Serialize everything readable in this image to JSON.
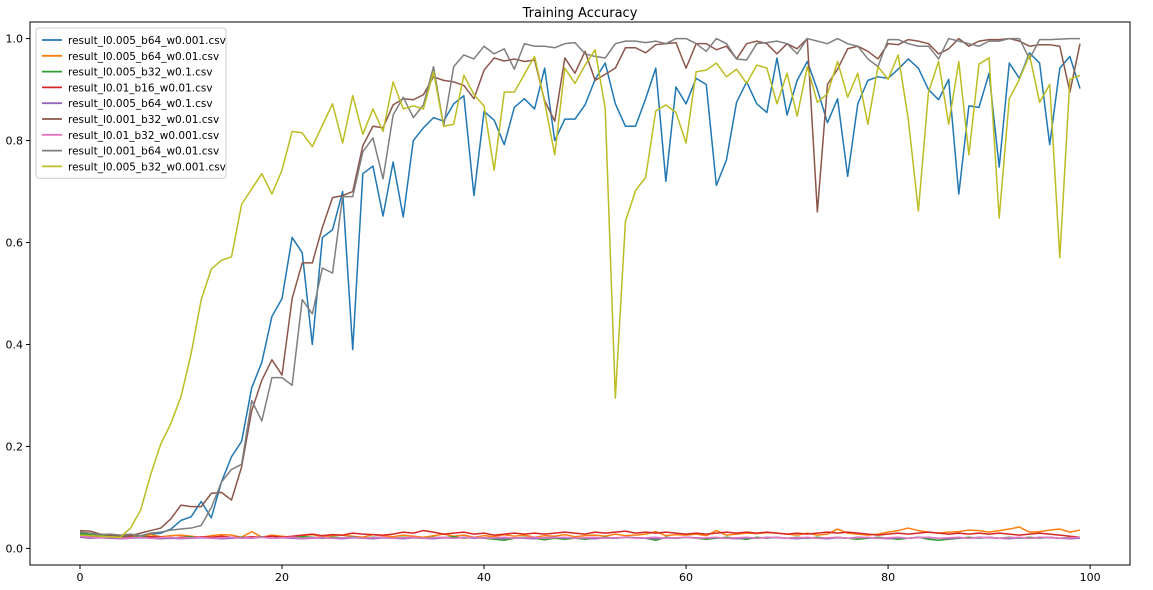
{
  "chart_data": {
    "type": "line",
    "title": "Training Accuracy",
    "xlabel": "",
    "ylabel": "",
    "xlim": [
      -4.95,
      103.95
    ],
    "ylim": [
      -0.0325,
      1.0325
    ],
    "xticks": [
      0,
      20,
      40,
      60,
      80,
      100
    ],
    "yticks": [
      0.0,
      0.2,
      0.4,
      0.6,
      0.8,
      1.0
    ],
    "grid": false,
    "legend_position": "top-left",
    "series": [
      {
        "name": "result_l0.005_b64_w0.001.csv",
        "color": "#1f77b4",
        "x_start": 0,
        "values": [
          0.028,
          0.026,
          0.024,
          0.023,
          0.022,
          0.024,
          0.025,
          0.028,
          0.03,
          0.038,
          0.055,
          0.062,
          0.092,
          0.06,
          0.13,
          0.18,
          0.21,
          0.315,
          0.365,
          0.455,
          0.49,
          0.61,
          0.58,
          0.4,
          0.61,
          0.625,
          0.7,
          0.39,
          0.735,
          0.75,
          0.652,
          0.758,
          0.65,
          0.8,
          0.825,
          0.845,
          0.838,
          0.872,
          0.888,
          0.692,
          0.857,
          0.84,
          0.792,
          0.865,
          0.882,
          0.862,
          0.942,
          0.8,
          0.842,
          0.842,
          0.87,
          0.92,
          0.952,
          0.872,
          0.828,
          0.828,
          0.882,
          0.942,
          0.72,
          0.905,
          0.872,
          0.922,
          0.91,
          0.712,
          0.762,
          0.875,
          0.915,
          0.872,
          0.855,
          0.962,
          0.85,
          0.918,
          0.955,
          0.9,
          0.835,
          0.882,
          0.73,
          0.872,
          0.918,
          0.925,
          0.922,
          0.94,
          0.96,
          0.942,
          0.9,
          0.88,
          0.92,
          0.695,
          0.868,
          0.865,
          0.932,
          0.748,
          0.952,
          0.922,
          0.972,
          0.952,
          0.792,
          0.942,
          0.965,
          0.902
        ]
      },
      {
        "name": "result_l0.005_b64_w0.01.csv",
        "color": "#ff7f0e",
        "x_start": 0,
        "values": [
          0.025,
          0.022,
          0.026,
          0.021,
          0.02,
          0.025,
          0.022,
          0.027,
          0.023,
          0.025,
          0.026,
          0.024,
          0.022,
          0.025,
          0.027,
          0.026,
          0.022,
          0.033,
          0.022,
          0.026,
          0.024,
          0.022,
          0.025,
          0.027,
          0.023,
          0.025,
          0.026,
          0.024,
          0.022,
          0.027,
          0.025,
          0.023,
          0.026,
          0.024,
          0.022,
          0.025,
          0.028,
          0.024,
          0.026,
          0.022,
          0.025,
          0.023,
          0.027,
          0.024,
          0.026,
          0.022,
          0.025,
          0.024,
          0.027,
          0.023,
          0.025,
          0.026,
          0.024,
          0.028,
          0.025,
          0.026,
          0.028,
          0.033,
          0.025,
          0.027,
          0.026,
          0.028,
          0.025,
          0.035,
          0.026,
          0.028,
          0.03,
          0.029,
          0.031,
          0.03,
          0.028,
          0.026,
          0.03,
          0.026,
          0.028,
          0.038,
          0.03,
          0.028,
          0.026,
          0.028,
          0.032,
          0.035,
          0.04,
          0.035,
          0.032,
          0.03,
          0.032,
          0.033,
          0.036,
          0.035,
          0.032,
          0.035,
          0.038,
          0.042,
          0.032,
          0.033,
          0.036,
          0.038,
          0.032,
          0.036
        ]
      },
      {
        "name": "result_l0.005_b32_w0.1.csv",
        "color": "#2ca02c",
        "x_start": 0,
        "values": [
          0.03,
          0.027,
          0.025,
          0.024,
          0.023,
          0.022,
          0.024,
          0.023,
          0.022,
          0.02,
          0.022,
          0.023,
          0.021,
          0.022,
          0.02,
          0.021,
          0.022,
          0.021,
          0.023,
          0.02,
          0.022,
          0.021,
          0.023,
          0.022,
          0.02,
          0.022,
          0.021,
          0.023,
          0.02,
          0.022,
          0.021,
          0.02,
          0.022,
          0.021,
          0.02,
          0.022,
          0.021,
          0.023,
          0.02,
          0.022,
          0.02,
          0.018,
          0.016,
          0.02,
          0.022,
          0.02,
          0.017,
          0.02,
          0.018,
          0.02,
          0.018,
          0.02,
          0.022,
          0.02,
          0.022,
          0.021,
          0.02,
          0.016,
          0.022,
          0.02,
          0.022,
          0.02,
          0.018,
          0.02,
          0.022,
          0.02,
          0.018,
          0.022,
          0.02,
          0.022,
          0.02,
          0.022,
          0.02,
          0.022,
          0.02,
          0.022,
          0.02,
          0.018,
          0.02,
          0.022,
          0.02,
          0.018,
          0.02,
          0.022,
          0.018,
          0.016,
          0.018,
          0.02,
          0.022,
          0.02,
          0.022,
          0.02,
          0.022,
          0.02,
          0.022,
          0.02,
          0.022,
          0.02,
          0.022,
          0.02
        ]
      },
      {
        "name": "result_l0.01_b16_w0.01.csv",
        "color": "#d62728",
        "x_start": 0,
        "values": [
          0.025,
          0.023,
          0.022,
          0.021,
          0.02,
          0.022,
          0.021,
          0.023,
          0.022,
          0.02,
          0.022,
          0.021,
          0.023,
          0.022,
          0.024,
          0.022,
          0.021,
          0.023,
          0.022,
          0.024,
          0.022,
          0.024,
          0.026,
          0.028,
          0.025,
          0.027,
          0.026,
          0.03,
          0.028,
          0.027,
          0.026,
          0.028,
          0.032,
          0.03,
          0.035,
          0.032,
          0.028,
          0.03,
          0.032,
          0.028,
          0.03,
          0.026,
          0.028,
          0.03,
          0.028,
          0.03,
          0.028,
          0.03,
          0.032,
          0.03,
          0.028,
          0.032,
          0.03,
          0.032,
          0.034,
          0.03,
          0.032,
          0.03,
          0.032,
          0.03,
          0.028,
          0.03,
          0.028,
          0.03,
          0.032,
          0.03,
          0.032,
          0.03,
          0.032,
          0.03,
          0.028,
          0.03,
          0.028,
          0.03,
          0.032,
          0.03,
          0.032,
          0.03,
          0.028,
          0.026,
          0.028,
          0.03,
          0.028,
          0.03,
          0.032,
          0.03,
          0.028,
          0.03,
          0.028,
          0.03,
          0.028,
          0.03,
          0.028,
          0.026,
          0.028,
          0.03,
          0.028,
          0.026,
          0.024,
          0.022
        ]
      },
      {
        "name": "result_l0.005_b64_w0.1.csv",
        "color": "#9467bd",
        "x_start": 0,
        "values": [
          0.022,
          0.02,
          0.021,
          0.02,
          0.019,
          0.02,
          0.021,
          0.02,
          0.019,
          0.02,
          0.019,
          0.02,
          0.021,
          0.02,
          0.019,
          0.02,
          0.021,
          0.02,
          0.022,
          0.02,
          0.021,
          0.02,
          0.019,
          0.02,
          0.021,
          0.02,
          0.019,
          0.021,
          0.02,
          0.019,
          0.021,
          0.02,
          0.019,
          0.021,
          0.02,
          0.019,
          0.021,
          0.02,
          0.022,
          0.02,
          0.021,
          0.02,
          0.019,
          0.021,
          0.02,
          0.019,
          0.021,
          0.022,
          0.02,
          0.021,
          0.02,
          0.019,
          0.021,
          0.02,
          0.022,
          0.021,
          0.02,
          0.019,
          0.021,
          0.02,
          0.022,
          0.021,
          0.02,
          0.021,
          0.02,
          0.019,
          0.021,
          0.02,
          0.022,
          0.021,
          0.02,
          0.019,
          0.021,
          0.02,
          0.019,
          0.021,
          0.02,
          0.022,
          0.021,
          0.02,
          0.019,
          0.021,
          0.02,
          0.022,
          0.021,
          0.02,
          0.019,
          0.021,
          0.02,
          0.022,
          0.021,
          0.02,
          0.019,
          0.021,
          0.02,
          0.022,
          0.021,
          0.02,
          0.019,
          0.02
        ]
      },
      {
        "name": "result_l0.001_b32_w0.01.csv",
        "color": "#8c564b",
        "x_start": 0,
        "values": [
          0.035,
          0.034,
          0.028,
          0.026,
          0.024,
          0.025,
          0.03,
          0.035,
          0.04,
          0.058,
          0.085,
          0.082,
          0.082,
          0.108,
          0.11,
          0.095,
          0.16,
          0.27,
          0.33,
          0.37,
          0.34,
          0.49,
          0.56,
          0.56,
          0.63,
          0.688,
          0.692,
          0.7,
          0.79,
          0.828,
          0.825,
          0.87,
          0.882,
          0.88,
          0.89,
          0.925,
          0.918,
          0.915,
          0.908,
          0.882,
          0.938,
          0.962,
          0.956,
          0.96,
          0.955,
          0.958,
          0.878,
          0.838,
          0.962,
          0.932,
          0.975,
          0.918,
          0.93,
          0.942,
          0.982,
          0.982,
          0.972,
          0.988,
          0.99,
          0.992,
          0.942,
          0.99,
          0.99,
          0.978,
          0.985,
          0.96,
          0.99,
          0.995,
          0.99,
          0.97,
          0.99,
          0.98,
          1.0,
          0.66,
          0.91,
          0.94,
          0.98,
          0.985,
          0.975,
          0.96,
          0.99,
          0.988,
          0.998,
          0.995,
          0.99,
          0.97,
          0.98,
          1.0,
          0.985,
          0.995,
          0.998,
          0.998,
          1.0,
          0.995,
          0.985,
          0.988,
          0.988,
          0.985,
          0.895,
          0.99
        ]
      },
      {
        "name": "result_l0.01_b32_w0.001.csv",
        "color": "#e377c2",
        "x_start": 0,
        "values": [
          0.024,
          0.022,
          0.021,
          0.022,
          0.02,
          0.021,
          0.022,
          0.02,
          0.021,
          0.022,
          0.02,
          0.021,
          0.022,
          0.02,
          0.021,
          0.022,
          0.02,
          0.021,
          0.022,
          0.02,
          0.021,
          0.022,
          0.02,
          0.021,
          0.022,
          0.02,
          0.021,
          0.022,
          0.02,
          0.021,
          0.022,
          0.02,
          0.021,
          0.022,
          0.02,
          0.021,
          0.022,
          0.02,
          0.021,
          0.022,
          0.02,
          0.021,
          0.022,
          0.02,
          0.021,
          0.022,
          0.02,
          0.021,
          0.022,
          0.02,
          0.021,
          0.022,
          0.02,
          0.021,
          0.022,
          0.02,
          0.021,
          0.022,
          0.02,
          0.021,
          0.022,
          0.02,
          0.021,
          0.022,
          0.02,
          0.021,
          0.022,
          0.02,
          0.021,
          0.022,
          0.02,
          0.021,
          0.022,
          0.02,
          0.021,
          0.022,
          0.02,
          0.021,
          0.022,
          0.02,
          0.021,
          0.022,
          0.02,
          0.021,
          0.022,
          0.02,
          0.021,
          0.022,
          0.02,
          0.021,
          0.022,
          0.02,
          0.021,
          0.022,
          0.02,
          0.021,
          0.022,
          0.02,
          0.021,
          0.022
        ]
      },
      {
        "name": "result_l0.001_b64_w0.01.csv",
        "color": "#7f7f7f",
        "x_start": 0,
        "values": [
          0.032,
          0.03,
          0.027,
          0.028,
          0.026,
          0.028,
          0.025,
          0.03,
          0.032,
          0.036,
          0.038,
          0.04,
          0.045,
          0.08,
          0.13,
          0.155,
          0.165,
          0.29,
          0.25,
          0.335,
          0.335,
          0.32,
          0.488,
          0.46,
          0.55,
          0.54,
          0.69,
          0.69,
          0.778,
          0.805,
          0.725,
          0.85,
          0.885,
          0.845,
          0.87,
          0.945,
          0.828,
          0.945,
          0.968,
          0.96,
          0.985,
          0.97,
          0.98,
          0.94,
          0.99,
          0.985,
          0.985,
          0.982,
          0.99,
          0.992,
          0.97,
          0.965,
          0.962,
          0.99,
          0.995,
          0.995,
          0.992,
          0.995,
          0.99,
          1.0,
          1.0,
          0.99,
          0.975,
          1.0,
          0.99,
          0.96,
          0.958,
          0.99,
          0.992,
          0.995,
          0.99,
          0.97,
          1.0,
          0.995,
          0.99,
          1.0,
          0.99,
          0.985,
          0.96,
          0.945,
          0.998,
          0.998,
          0.99,
          0.985,
          0.985,
          0.96,
          1.0,
          0.995,
          0.99,
          0.985,
          0.995,
          0.995,
          1.0,
          1.0,
          0.96,
          0.998,
          0.998,
          0.999,
          1.0,
          1.0
        ]
      },
      {
        "name": "result_l0.005_b32_w0.001.csv",
        "color": "#bcbd22",
        "x_start": 0,
        "values": [
          0.026,
          0.025,
          0.024,
          0.023,
          0.022,
          0.04,
          0.075,
          0.145,
          0.205,
          0.245,
          0.298,
          0.382,
          0.488,
          0.548,
          0.565,
          0.572,
          0.675,
          0.705,
          0.735,
          0.695,
          0.742,
          0.818,
          0.815,
          0.788,
          0.83,
          0.872,
          0.795,
          0.888,
          0.812,
          0.862,
          0.818,
          0.915,
          0.862,
          0.868,
          0.862,
          0.935,
          0.828,
          0.832,
          0.928,
          0.89,
          0.868,
          0.742,
          0.895,
          0.895,
          0.93,
          0.965,
          0.875,
          0.772,
          0.942,
          0.912,
          0.948,
          0.978,
          0.862,
          0.295,
          0.642,
          0.702,
          0.728,
          0.858,
          0.87,
          0.855,
          0.795,
          0.935,
          0.938,
          0.952,
          0.925,
          0.94,
          0.912,
          0.948,
          0.942,
          0.872,
          0.932,
          0.848,
          0.945,
          0.875,
          0.892,
          0.955,
          0.885,
          0.932,
          0.832,
          0.945,
          0.92,
          0.968,
          0.842,
          0.662,
          0.895,
          0.955,
          0.832,
          0.955,
          0.772,
          0.95,
          0.962,
          0.648,
          0.882,
          0.92,
          0.968,
          0.875,
          0.91,
          0.57,
          0.92,
          0.928
        ]
      }
    ]
  }
}
